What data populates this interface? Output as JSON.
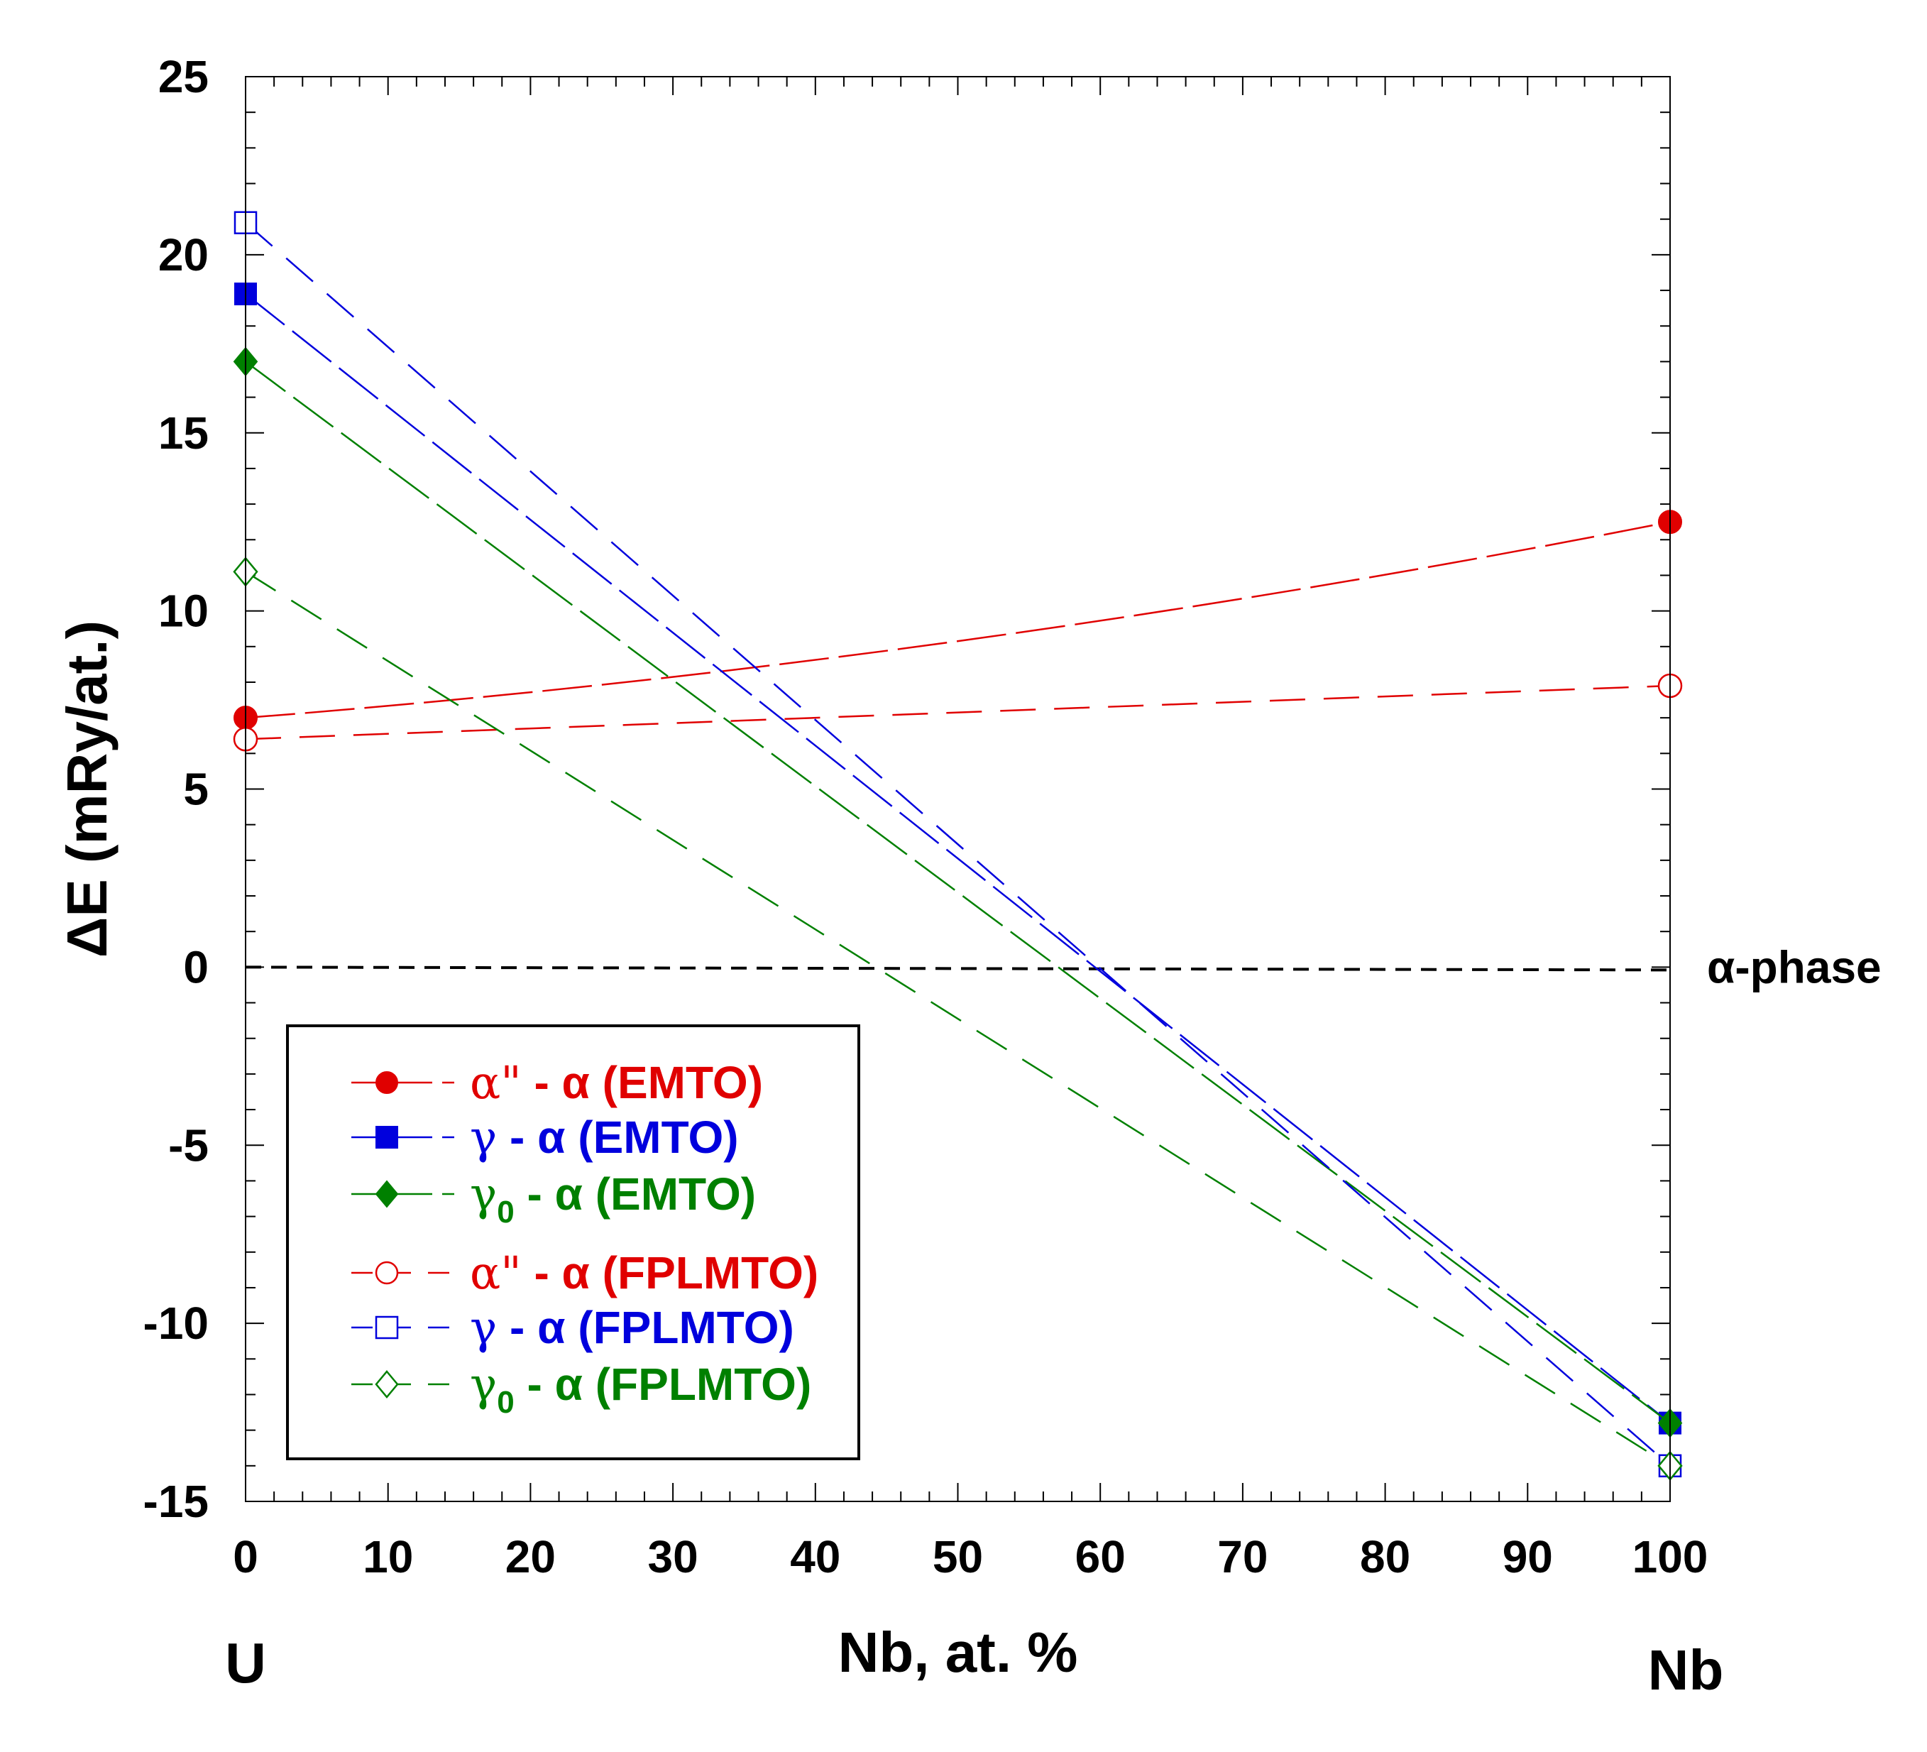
{
  "chart_data": {
    "type": "line",
    "title": "",
    "xlabel": "Nb, at. %",
    "ylabel": "ΔE (mRy/at.)",
    "xlim": [
      0,
      100
    ],
    "ylim": [
      -15,
      25
    ],
    "x_ticks": [
      0,
      10,
      20,
      30,
      40,
      50,
      60,
      70,
      80,
      90,
      100
    ],
    "y_ticks": [
      -15,
      -10,
      -5,
      0,
      5,
      10,
      15,
      20,
      25
    ],
    "x_tick_labels": [
      "0",
      "10",
      "20",
      "30",
      "40",
      "50",
      "60",
      "70",
      "80",
      "90",
      "100"
    ],
    "y_tick_labels": [
      "-15",
      "-10",
      "-5",
      "0",
      "5",
      "10",
      "15",
      "20",
      "25"
    ],
    "x_end_labels": {
      "left": "U",
      "right": "Nb"
    },
    "reference_line": {
      "y": 0,
      "label": "α-phase"
    },
    "legend_position": "bottom-left",
    "series": [
      {
        "name": "α\" - α (EMTO)",
        "color": "#e00000",
        "marker": "circle",
        "filled": true,
        "x": [
          0,
          100
        ],
        "y": [
          7.0,
          12.5
        ],
        "curve": "convex"
      },
      {
        "name": "γ - α (EMTO)",
        "color": "#0000dd",
        "marker": "square",
        "filled": true,
        "x": [
          0,
          100
        ],
        "y": [
          18.9,
          -12.8
        ],
        "curve": "linear"
      },
      {
        "name": "γ0 - α (EMTO)",
        "color": "#008000",
        "marker": "diamond",
        "filled": true,
        "x": [
          0,
          100
        ],
        "y": [
          17.0,
          -12.8
        ],
        "curve": "linear"
      },
      {
        "name": "α\" - α (FPLMTO)",
        "color": "#e00000",
        "marker": "circle",
        "filled": false,
        "x": [
          0,
          100
        ],
        "y": [
          6.4,
          7.9
        ],
        "curve": "linear"
      },
      {
        "name": "γ - α (FPLMTO)",
        "color": "#0000dd",
        "marker": "square",
        "filled": false,
        "x": [
          0,
          100
        ],
        "y": [
          20.9,
          -14.0
        ],
        "curve": "linear"
      },
      {
        "name": "γ0 - α (FPLMTO)",
        "color": "#008000",
        "marker": "diamond",
        "filled": false,
        "x": [
          0,
          100
        ],
        "y": [
          11.1,
          -14.0
        ],
        "curve": "linear"
      }
    ],
    "legend": [
      {
        "greek": "α\"",
        "sub": "",
        "rest": " - α (EMTO)"
      },
      {
        "greek": "γ",
        "sub": "",
        "rest": " - α  (EMTO)"
      },
      {
        "greek": "γ",
        "sub": "0",
        "rest": " - α (EMTO)"
      },
      {
        "greek": "α\"",
        "sub": "",
        "rest": " - α (FPLMTO)"
      },
      {
        "greek": "γ",
        "sub": "",
        "rest": " - α  (FPLMTO)"
      },
      {
        "greek": "γ",
        "sub": "0",
        "rest": " - α  (FPLMTO)"
      }
    ]
  }
}
